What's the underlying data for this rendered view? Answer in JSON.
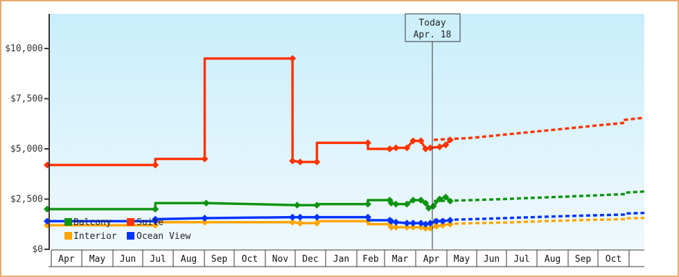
{
  "chart_data": {
    "type": "line",
    "title": "",
    "xlabel": "",
    "ylabel": "",
    "ylim": [
      0,
      11500
    ],
    "y_ticks": [
      {
        "value": 0,
        "label": "$0"
      },
      {
        "value": 2500,
        "label": "$2,500"
      },
      {
        "value": 5000,
        "label": "$5,000"
      },
      {
        "value": 7500,
        "label": "$7,500"
      },
      {
        "value": 10000,
        "label": "$10,000"
      }
    ],
    "x_months": [
      "Apr",
      "May",
      "Jun",
      "Jul",
      "Aug",
      "Sep",
      "Oct",
      "Nov",
      "Dec",
      "Jan",
      "Feb",
      "Mar",
      "Apr",
      "May",
      "Jun",
      "Jul",
      "Aug",
      "Sep",
      "Oct"
    ],
    "grid": false,
    "legend_position": "inside-bottom-left",
    "today_marker": {
      "line1": "Today",
      "line2": "Apr. 18",
      "month_index": 12.4
    },
    "series": [
      {
        "name": "Balcony",
        "color": "#0d9410",
        "historical": [
          [
            0.0,
            2000
          ],
          [
            3.55,
            2000
          ],
          [
            3.55,
            2300
          ],
          [
            5.2,
            2300
          ],
          [
            8.2,
            2200
          ],
          [
            8.85,
            2200
          ],
          [
            8.85,
            2250
          ],
          [
            10.55,
            2250
          ],
          [
            10.55,
            2450
          ],
          [
            11.3,
            2450
          ],
          [
            11.35,
            2300
          ],
          [
            11.5,
            2250
          ],
          [
            11.85,
            2250
          ],
          [
            12.05,
            2450
          ],
          [
            12.3,
            2450
          ],
          [
            12.45,
            2300
          ],
          [
            12.55,
            2050
          ],
          [
            12.7,
            2150
          ],
          [
            12.9,
            2500
          ],
          [
            13.1,
            2600
          ],
          [
            13.25,
            2400
          ]
        ],
        "projected": [
          [
            13.3,
            2400
          ],
          [
            14.0,
            2450
          ],
          [
            15.0,
            2500
          ],
          [
            16.0,
            2560
          ],
          [
            17.0,
            2620
          ],
          [
            18.0,
            2680
          ],
          [
            19.0,
            2750
          ],
          [
            20.0,
            2820
          ],
          [
            20.8,
            2880
          ]
        ]
      },
      {
        "name": "Suite",
        "color": "#ff3300",
        "historical": [
          [
            0.0,
            4200
          ],
          [
            3.55,
            4200
          ],
          [
            3.55,
            4500
          ],
          [
            5.15,
            4500
          ],
          [
            5.15,
            9500
          ],
          [
            8.05,
            9500
          ],
          [
            8.05,
            4400
          ],
          [
            8.3,
            4350
          ],
          [
            8.85,
            4350
          ],
          [
            8.85,
            5300
          ],
          [
            10.55,
            5300
          ],
          [
            10.55,
            5000
          ],
          [
            11.3,
            5000
          ],
          [
            11.5,
            5050
          ],
          [
            11.85,
            5050
          ],
          [
            12.05,
            5400
          ],
          [
            12.3,
            5400
          ],
          [
            12.45,
            5000
          ],
          [
            12.6,
            5050
          ],
          [
            12.9,
            5100
          ],
          [
            13.1,
            5200
          ],
          [
            13.25,
            5450
          ]
        ],
        "projected": [
          [
            13.3,
            5450
          ],
          [
            14.0,
            5550
          ],
          [
            15.0,
            5700
          ],
          [
            16.0,
            5850
          ],
          [
            17.0,
            6000
          ],
          [
            18.0,
            6150
          ],
          [
            19.0,
            6300
          ],
          [
            20.0,
            6450
          ],
          [
            20.8,
            6550
          ]
        ]
      },
      {
        "name": "Interior",
        "color": "#ffa500",
        "historical": [
          [
            0.0,
            1200
          ],
          [
            3.55,
            1200
          ],
          [
            3.55,
            1350
          ],
          [
            5.15,
            1350
          ],
          [
            8.05,
            1350
          ],
          [
            8.3,
            1300
          ],
          [
            8.85,
            1300
          ],
          [
            8.85,
            1400
          ],
          [
            10.55,
            1400
          ],
          [
            10.55,
            1250
          ],
          [
            11.3,
            1250
          ],
          [
            11.35,
            1100
          ],
          [
            11.5,
            1100
          ],
          [
            11.85,
            1100
          ],
          [
            12.05,
            1100
          ],
          [
            12.3,
            1100
          ],
          [
            12.45,
            1050
          ],
          [
            12.6,
            1050
          ],
          [
            12.8,
            1150
          ],
          [
            13.0,
            1200
          ],
          [
            13.25,
            1250
          ]
        ],
        "projected": [
          [
            13.3,
            1250
          ],
          [
            14.0,
            1300
          ],
          [
            15.0,
            1330
          ],
          [
            16.0,
            1380
          ],
          [
            17.0,
            1430
          ],
          [
            18.0,
            1470
          ],
          [
            19.0,
            1500
          ],
          [
            20.0,
            1540
          ],
          [
            20.8,
            1560
          ]
        ]
      },
      {
        "name": "Ocean View",
        "color": "#0033ff",
        "historical": [
          [
            0.0,
            1400
          ],
          [
            3.55,
            1400
          ],
          [
            3.55,
            1500
          ],
          [
            5.15,
            1550
          ],
          [
            8.05,
            1600
          ],
          [
            8.3,
            1600
          ],
          [
            8.85,
            1600
          ],
          [
            10.55,
            1600
          ],
          [
            10.55,
            1450
          ],
          [
            11.3,
            1450
          ],
          [
            11.35,
            1400
          ],
          [
            11.5,
            1350
          ],
          [
            11.85,
            1300
          ],
          [
            12.05,
            1300
          ],
          [
            12.3,
            1300
          ],
          [
            12.45,
            1250
          ],
          [
            12.6,
            1300
          ],
          [
            12.8,
            1400
          ],
          [
            13.0,
            1400
          ],
          [
            13.25,
            1450
          ]
        ],
        "projected": [
          [
            13.3,
            1450
          ],
          [
            14.0,
            1500
          ],
          [
            15.0,
            1550
          ],
          [
            16.0,
            1600
          ],
          [
            17.0,
            1650
          ],
          [
            18.0,
            1690
          ],
          [
            19.0,
            1730
          ],
          [
            20.0,
            1780
          ],
          [
            20.8,
            1810
          ]
        ]
      }
    ]
  },
  "legend": {
    "items": [
      {
        "label": "Balcony",
        "color": "#0d9410"
      },
      {
        "label": "Suite",
        "color": "#ff3300"
      },
      {
        "label": "Interior",
        "color": "#ffa500"
      },
      {
        "label": "Ocean View",
        "color": "#0033ff"
      }
    ]
  },
  "today": {
    "line1": "Today",
    "line2": "Apr. 18"
  },
  "colors": {
    "frame_border": "#e8a96a",
    "plot_bg_top": "#c9eefb",
    "plot_bg_bottom": "#f0f9fd",
    "axis": "#333333"
  }
}
